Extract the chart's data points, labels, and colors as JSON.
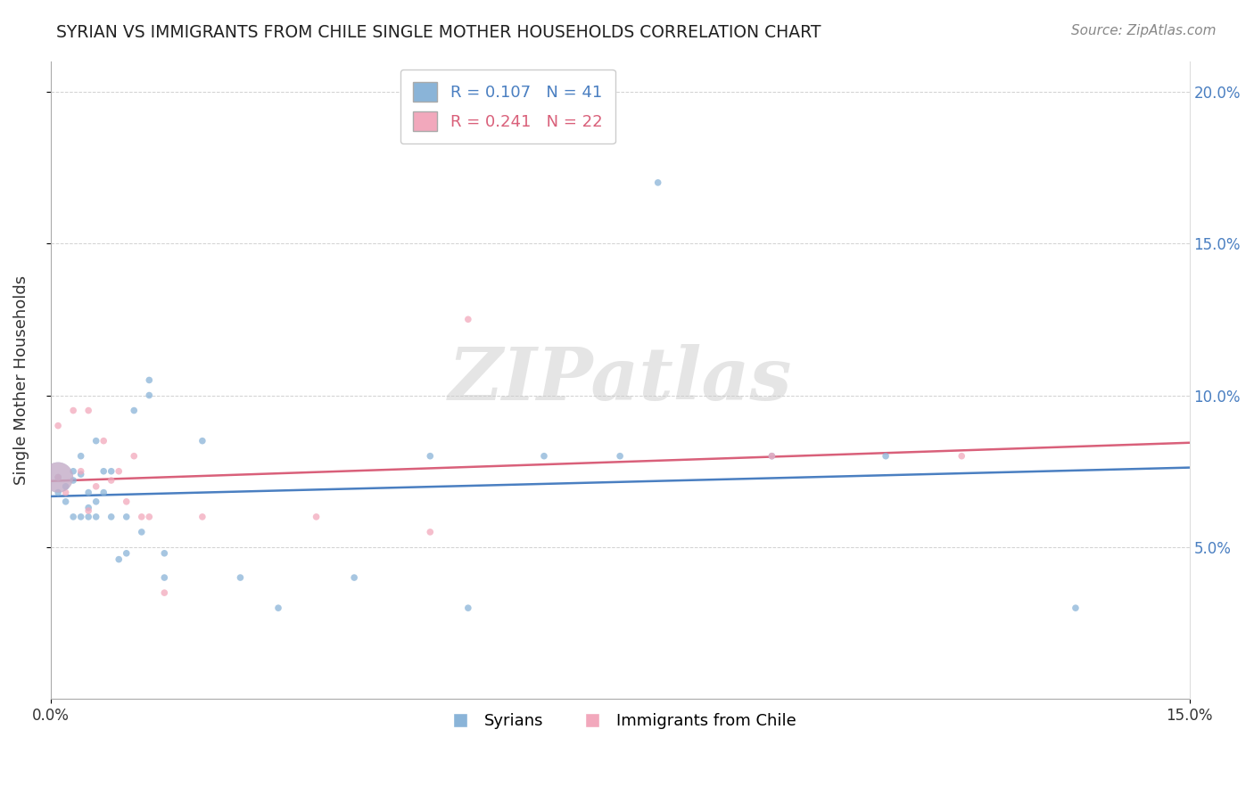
{
  "title": "SYRIAN VS IMMIGRANTS FROM CHILE SINGLE MOTHER HOUSEHOLDS CORRELATION CHART",
  "source": "Source: ZipAtlas.com",
  "ylabel": "Single Mother Households",
  "xlabel": "",
  "legend_label1": "Syrians",
  "legend_label2": "Immigrants from Chile",
  "R1": 0.107,
  "N1": 41,
  "R2": 0.241,
  "N2": 22,
  "color1": "#8ab4d8",
  "color2": "#f2a8bc",
  "trendline1_color": "#4a7fc1",
  "trendline2_color": "#d9607a",
  "xlim": [
    0.0,
    0.15
  ],
  "ylim": [
    0.0,
    0.21
  ],
  "xtick_positions": [
    0.0,
    0.15
  ],
  "xtick_labels": [
    "0.0%",
    "15.0%"
  ],
  "yticks": [
    0.05,
    0.1,
    0.15,
    0.2
  ],
  "watermark": "ZIPatlas",
  "syrians_x": [
    0.001,
    0.001,
    0.002,
    0.002,
    0.003,
    0.003,
    0.004,
    0.004,
    0.005,
    0.005,
    0.006,
    0.006,
    0.007,
    0.007,
    0.008,
    0.009,
    0.01,
    0.01,
    0.011,
    0.012,
    0.013,
    0.013,
    0.015,
    0.015,
    0.02,
    0.025,
    0.03,
    0.04,
    0.05,
    0.055,
    0.065,
    0.075,
    0.08,
    0.095,
    0.11,
    0.135,
    0.003,
    0.004,
    0.005,
    0.006,
    0.008
  ],
  "syrians_y": [
    0.073,
    0.068,
    0.07,
    0.065,
    0.075,
    0.072,
    0.08,
    0.074,
    0.068,
    0.063,
    0.065,
    0.085,
    0.075,
    0.068,
    0.075,
    0.046,
    0.06,
    0.048,
    0.095,
    0.055,
    0.105,
    0.1,
    0.048,
    0.04,
    0.085,
    0.04,
    0.03,
    0.04,
    0.08,
    0.03,
    0.08,
    0.08,
    0.17,
    0.08,
    0.08,
    0.03,
    0.06,
    0.06,
    0.06,
    0.06,
    0.06
  ],
  "syrians_size": [
    30,
    30,
    30,
    30,
    30,
    30,
    30,
    30,
    30,
    30,
    30,
    30,
    30,
    30,
    30,
    30,
    30,
    30,
    30,
    30,
    30,
    30,
    30,
    30,
    30,
    30,
    30,
    30,
    30,
    30,
    30,
    30,
    30,
    30,
    30,
    30,
    30,
    30,
    30,
    30,
    30
  ],
  "chile_x": [
    0.001,
    0.002,
    0.003,
    0.004,
    0.005,
    0.005,
    0.006,
    0.007,
    0.008,
    0.009,
    0.01,
    0.011,
    0.012,
    0.013,
    0.015,
    0.02,
    0.035,
    0.05,
    0.055,
    0.095,
    0.12,
    0.001
  ],
  "chile_y": [
    0.09,
    0.068,
    0.095,
    0.075,
    0.095,
    0.062,
    0.07,
    0.085,
    0.072,
    0.075,
    0.065,
    0.08,
    0.06,
    0.06,
    0.035,
    0.06,
    0.06,
    0.055,
    0.125,
    0.08,
    0.08,
    0.073
  ],
  "syrians_big_x": [
    0.001
  ],
  "syrians_big_y": [
    0.073
  ],
  "chile_big_x": [
    0.001
  ],
  "chile_big_y": [
    0.073
  ],
  "big_size": 600
}
